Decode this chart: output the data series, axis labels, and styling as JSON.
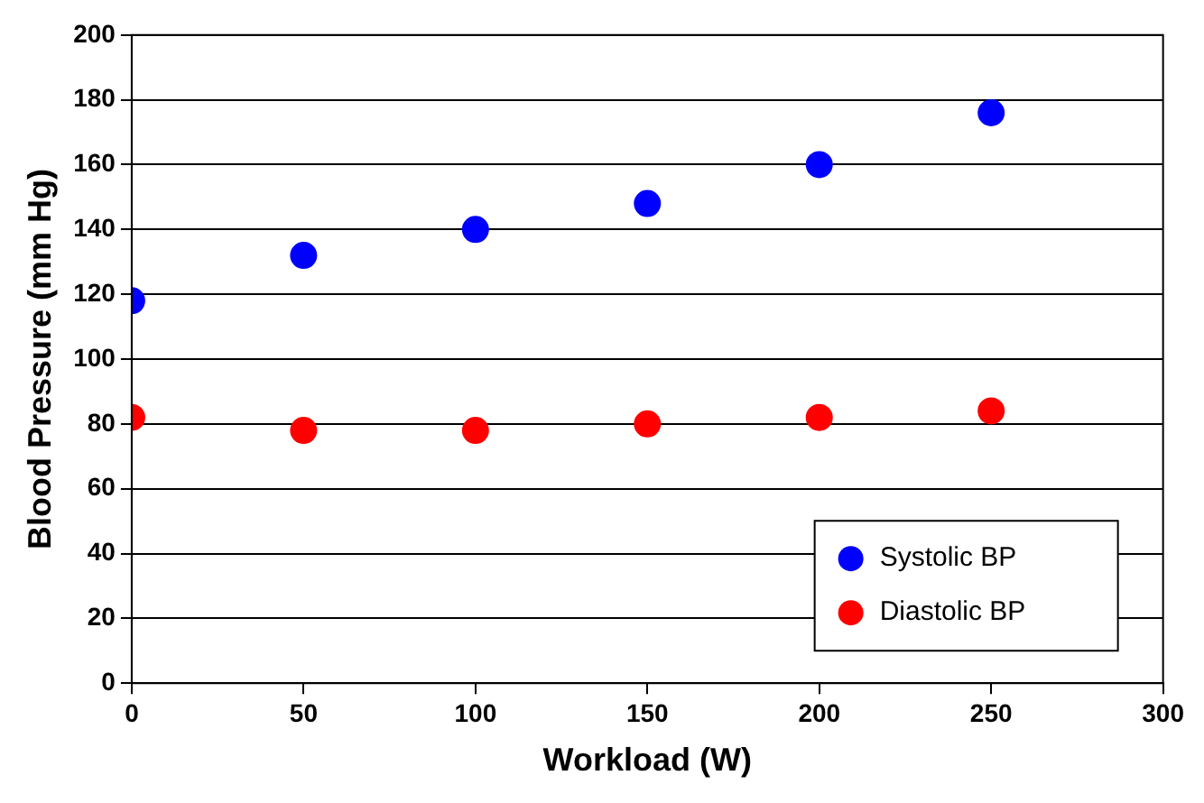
{
  "chart_data": {
    "type": "scatter",
    "xlabel": "Workload (W)",
    "ylabel": "Blood Pressure (mm Hg)",
    "x": [
      0,
      50,
      100,
      150,
      200,
      250
    ],
    "series": [
      {
        "name": "Systolic BP",
        "color": "#0000ff",
        "values": [
          118,
          132,
          140,
          148,
          160,
          176
        ]
      },
      {
        "name": "Diastolic BP",
        "color": "#ff0000",
        "values": [
          82,
          78,
          78,
          80,
          82,
          84
        ]
      }
    ],
    "xlim": [
      0,
      300
    ],
    "xticks": [
      0,
      50,
      100,
      150,
      200,
      250,
      300
    ],
    "ylim": [
      0,
      200
    ],
    "yticks": [
      0,
      20,
      40,
      60,
      80,
      100,
      120,
      140,
      160,
      180,
      200
    ],
    "grid": "y",
    "legend": "bottom right",
    "marker": "circle"
  }
}
